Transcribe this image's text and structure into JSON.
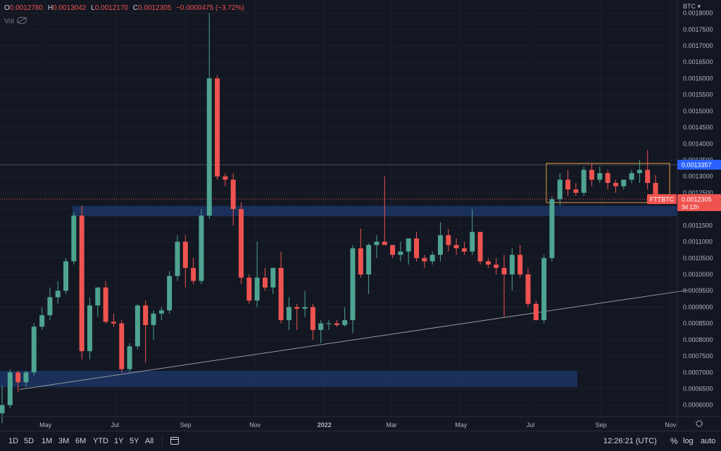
{
  "legend": {
    "o_label": "O",
    "o_value": "0.0012780",
    "h_label": "H",
    "h_value": "0.0013042",
    "l_label": "L",
    "l_value": "0.0012170",
    "c_label": "C",
    "c_value": "0.0012305",
    "change": "−0.0000475 (−3.72%)",
    "vol_label": "Vol"
  },
  "currency": "BTC ▾",
  "price_labels": {
    "level": "0.0013357",
    "last": "0.0012305",
    "symbol": "FTTBTC",
    "countdown": "3d 12h"
  },
  "toolbar": {
    "timeframes": [
      "1D",
      "5D",
      "1M",
      "3M",
      "6M",
      "YTD",
      "1Y",
      "5Y",
      "All"
    ],
    "clock": "12:26:21 (UTC)",
    "percent": "%",
    "log": "log",
    "auto": "auto"
  },
  "colors": {
    "up": "#4fa391",
    "down": "#ef5350",
    "zone": "#1e3a6e",
    "box": "#e09a3c",
    "level": "#2962ff"
  },
  "chart_data": {
    "type": "candlestick",
    "symbol": "FTTBTC",
    "quote_currency": "BTC",
    "interval": "weekly",
    "y_axis": {
      "range": [
        0.000565,
        0.00184
      ],
      "ticks": [
        "0.0006000",
        "0.0006500",
        "0.0007000",
        "0.0007500",
        "0.0008000",
        "0.0008500",
        "0.0009000",
        "0.0009500",
        "0.0010000",
        "0.0010500",
        "0.0011000",
        "0.0011500",
        "0.0012000",
        "0.0012500",
        "0.0013000",
        "0.0013500",
        "0.0014000",
        "0.0014500",
        "0.0015000",
        "0.0015500",
        "0.0016000",
        "0.0016500",
        "0.0017000",
        "0.0017500",
        "0.0018000"
      ]
    },
    "x_axis": {
      "start": "2021-03-22",
      "end": "2022-11-07",
      "ticks": [
        {
          "label": "Mar",
          "date": "2021-03-01"
        },
        {
          "label": "May",
          "date": "2021-05-01"
        },
        {
          "label": "Jul",
          "date": "2021-07-01"
        },
        {
          "label": "Sep",
          "date": "2021-09-01"
        },
        {
          "label": "Nov",
          "date": "2021-11-01"
        },
        {
          "label": "2022",
          "date": "2022-01-01"
        },
        {
          "label": "Mar",
          "date": "2022-03-01"
        },
        {
          "label": "May",
          "date": "2022-05-01"
        },
        {
          "label": "Jul",
          "date": "2022-07-01"
        },
        {
          "label": "Sep",
          "date": "2022-09-01"
        },
        {
          "label": "Nov",
          "date": "2022-11-01"
        }
      ]
    },
    "candles": [
      [
        0.000575,
        0.00066,
        0.000545,
        0.0006
      ],
      [
        0.0006,
        0.00071,
        0.00059,
        0.0007
      ],
      [
        0.0007,
        0.000705,
        0.00064,
        0.00067
      ],
      [
        0.00067,
        0.000705,
        0.000655,
        0.0007
      ],
      [
        0.0007,
        0.00085,
        0.00069,
        0.00084
      ],
      [
        0.00084,
        0.0009,
        0.00083,
        0.000875
      ],
      [
        0.000875,
        0.00096,
        0.00086,
        0.00093
      ],
      [
        0.00093,
        0.00098,
        0.00091,
        0.00095
      ],
      [
        0.00095,
        0.00105,
        0.00094,
        0.00104
      ],
      [
        0.00104,
        0.00119,
        0.00103,
        0.00118
      ],
      [
        0.00118,
        0.00121,
        0.00074,
        0.000765
      ],
      [
        0.000765,
        0.00093,
        0.00074,
        0.000905
      ],
      [
        0.000905,
        0.00096,
        0.00087,
        0.00096
      ],
      [
        0.00096,
        0.00098,
        0.00085,
        0.000855
      ],
      [
        0.000855,
        0.00088,
        0.00084,
        0.00085
      ],
      [
        0.00085,
        0.00086,
        0.0007,
        0.00071
      ],
      [
        0.00071,
        0.00079,
        0.0007,
        0.00078
      ],
      [
        0.00078,
        0.00091,
        0.00077,
        0.000905
      ],
      [
        0.000905,
        0.00092,
        0.00073,
        0.000845
      ],
      [
        0.000845,
        0.00089,
        0.0008,
        0.00088
      ],
      [
        0.00088,
        0.0009,
        0.00086,
        0.00089
      ],
      [
        0.00089,
        0.00101,
        0.00088,
        0.000995
      ],
      [
        0.000995,
        0.00112,
        0.00098,
        0.0011
      ],
      [
        0.0011,
        0.00112,
        0.00096,
        0.00102
      ],
      [
        0.00102,
        0.00105,
        0.00097,
        0.00098
      ],
      [
        0.00098,
        0.0012,
        0.00097,
        0.00118
      ],
      [
        0.00118,
        0.0018,
        0.00117,
        0.0016
      ],
      [
        0.0016,
        0.00161,
        0.00129,
        0.0013
      ],
      [
        0.0013,
        0.00131,
        0.00127,
        0.00129
      ],
      [
        0.00129,
        0.00131,
        0.00115,
        0.0012
      ],
      [
        0.0012,
        0.00122,
        0.00097,
        0.00099
      ],
      [
        0.00099,
        0.001,
        0.00091,
        0.00092
      ],
      [
        0.00092,
        0.0011,
        0.0009,
        0.00099
      ],
      [
        0.00099,
        0.00102,
        0.00095,
        0.00096
      ],
      [
        0.00096,
        0.00102,
        0.00094,
        0.00102
      ],
      [
        0.00102,
        0.00107,
        0.00085,
        0.00086
      ],
      [
        0.00086,
        0.00093,
        0.00083,
        0.0009
      ],
      [
        0.0009,
        0.00091,
        0.00083,
        0.000895
      ],
      [
        0.000895,
        0.00095,
        0.00087,
        0.0009
      ],
      [
        0.0009,
        0.00091,
        0.0008,
        0.00083
      ],
      [
        0.00083,
        0.00086,
        0.00079,
        0.00085
      ],
      [
        0.00085,
        0.00086,
        0.00083,
        0.00085
      ],
      [
        0.00085,
        0.00086,
        0.00084,
        0.000845
      ],
      [
        0.000845,
        0.0009,
        0.00084,
        0.00086
      ],
      [
        0.00086,
        0.00109,
        0.00082,
        0.00108
      ],
      [
        0.00108,
        0.00114,
        0.00099,
        0.001
      ],
      [
        0.001,
        0.001095,
        0.00094,
        0.00109
      ],
      [
        0.00109,
        0.00112,
        0.00105,
        0.0011
      ],
      [
        0.0011,
        0.0013,
        0.00109,
        0.00109
      ],
      [
        0.00109,
        0.00109,
        0.00105,
        0.00106
      ],
      [
        0.00106,
        0.0011,
        0.00104,
        0.00107
      ],
      [
        0.00107,
        0.00111,
        0.00103,
        0.00111
      ],
      [
        0.00111,
        0.00113,
        0.00104,
        0.00105
      ],
      [
        0.00105,
        0.00106,
        0.00102,
        0.00104
      ],
      [
        0.00104,
        0.00107,
        0.00103,
        0.00106
      ],
      [
        0.00106,
        0.00116,
        0.00104,
        0.00112
      ],
      [
        0.00112,
        0.00114,
        0.00107,
        0.00109
      ],
      [
        0.00109,
        0.00111,
        0.00106,
        0.00108
      ],
      [
        0.00108,
        0.0011,
        0.00106,
        0.00107
      ],
      [
        0.00107,
        0.0012,
        0.00106,
        0.00113
      ],
      [
        0.00113,
        0.00113,
        0.00103,
        0.00104
      ],
      [
        0.00104,
        0.00105,
        0.00102,
        0.00103
      ],
      [
        0.00103,
        0.00105,
        0.001,
        0.00102
      ],
      [
        0.00102,
        0.00106,
        0.00087,
        0.001
      ],
      [
        0.001,
        0.00108,
        0.00095,
        0.00106
      ],
      [
        0.00106,
        0.00109,
        0.00099,
        0.001
      ],
      [
        0.001,
        0.00102,
        0.0009,
        0.00091
      ],
      [
        0.00091,
        0.00092,
        0.00086,
        0.00086
      ],
      [
        0.00086,
        0.00106,
        0.00085,
        0.00105
      ],
      [
        0.00105,
        0.00124,
        0.00104,
        0.00123
      ],
      [
        0.00123,
        0.00131,
        0.00121,
        0.00129
      ],
      [
        0.00129,
        0.00132,
        0.00124,
        0.00126
      ],
      [
        0.00126,
        0.00128,
        0.00124,
        0.00125
      ],
      [
        0.00125,
        0.00133,
        0.00124,
        0.00132
      ],
      [
        0.00132,
        0.00134,
        0.00127,
        0.00129
      ],
      [
        0.00129,
        0.00133,
        0.00128,
        0.00131
      ],
      [
        0.00131,
        0.00132,
        0.00126,
        0.00128
      ],
      [
        0.00128,
        0.00129,
        0.00125,
        0.00127
      ],
      [
        0.00127,
        0.00129,
        0.00126,
        0.00129
      ],
      [
        0.00129,
        0.00132,
        0.00128,
        0.00131
      ],
      [
        0.00131,
        0.00135,
        0.00128,
        0.00132
      ],
      [
        0.00132,
        0.00138,
        0.00126,
        0.00128
      ],
      [
        0.00128,
        0.001304,
        0.001217,
        0.0012305
      ]
    ],
    "annotations": {
      "horizontal_line": 0.0013357,
      "zones": [
        {
          "from": 0.001178,
          "to": 0.00121
        },
        {
          "from": 0.000655,
          "to": 0.000705
        }
      ],
      "trendline": {
        "from": [
          0,
          0.000648
        ],
        "to": [
          83,
          0.000952
        ]
      },
      "range_box": {
        "first_candle": 69,
        "last_candle": 82,
        "low": 0.00122,
        "high": 0.00134
      }
    }
  }
}
